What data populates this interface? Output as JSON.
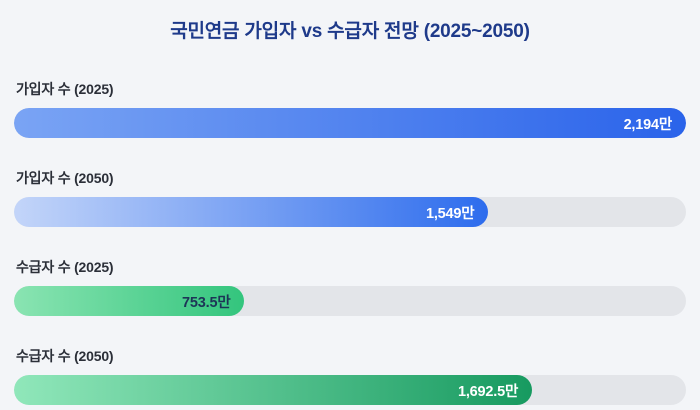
{
  "title": "국민연금 가입자 vs 수급자 전망 (2025~2050)",
  "chart_data": {
    "type": "bar",
    "orientation": "horizontal",
    "title": "국민연금 가입자 vs 수급자 전망 (2025~2050)",
    "categories": [
      "가입자 수 (2025)",
      "가입자 수 (2050)",
      "수급자 수 (2025)",
      "수급자 수 (2050)"
    ],
    "values": [
      2194,
      1549,
      753.5,
      1692.5
    ],
    "value_labels": [
      "2,194만",
      "1,549만",
      "753.5만",
      "1,692.5만"
    ],
    "unit": "만",
    "xlim": [
      0,
      2194
    ],
    "grid": false,
    "legend": "none",
    "colors": {
      "title": "#1e3a8a",
      "member_bar": "#2a63ea",
      "member_bar_light": "#c3d5f9",
      "recipient_bar": "#33c57d",
      "recipient_bar_dark": "#179a60",
      "track": "#e3e5e9",
      "background": "#f3f5f8",
      "value_text_light": "#ffffff",
      "value_text_dark": "#1d3557"
    }
  }
}
